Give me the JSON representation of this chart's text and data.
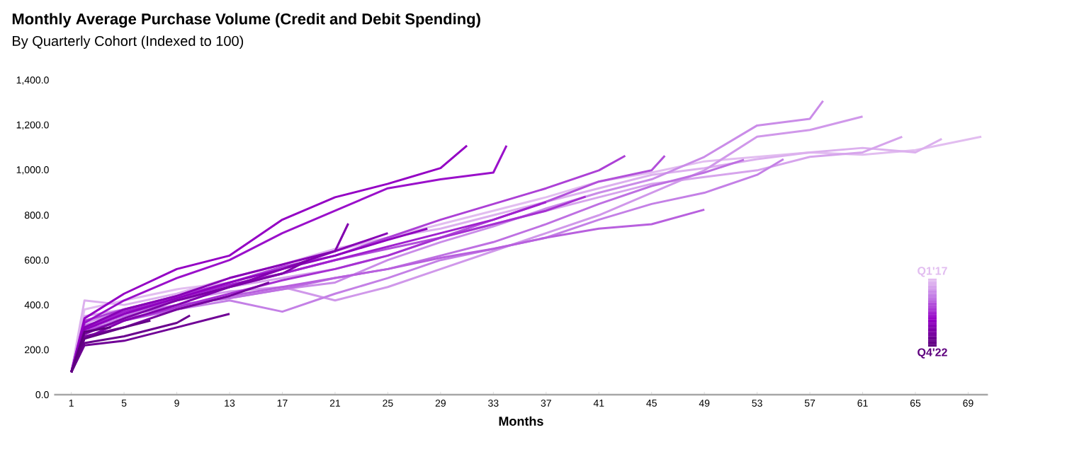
{
  "chart_data": {
    "type": "line",
    "title": "Monthly Average Purchase Volume (Credit and Debit Spending)",
    "subtitle": "By Quarterly Cohort (Indexed to 100)",
    "xlabel": "Months",
    "xlim": [
      -0.3,
      70.5
    ],
    "xticks": [
      1,
      5,
      9,
      13,
      17,
      21,
      25,
      29,
      33,
      37,
      41,
      45,
      49,
      53,
      57,
      61,
      65,
      69
    ],
    "ylim": [
      0,
      1400
    ],
    "yticks": [
      {
        "value": 0,
        "label": "0.0"
      },
      {
        "value": 200,
        "label": "200.0"
      },
      {
        "value": 400,
        "label": "400.0"
      },
      {
        "value": 600,
        "label": "600.0"
      },
      {
        "value": 800,
        "label": "800.0"
      },
      {
        "value": 1000,
        "label": "1,000.0"
      },
      {
        "value": 1200,
        "label": "1,200.0"
      },
      {
        "value": 1400,
        "label": "1,400.0"
      }
    ],
    "grid": false,
    "annotations": [
      "Q1'17",
      "Q4'22"
    ],
    "series": [
      {
        "color": "#e2bdf0",
        "x": [
          1,
          2,
          5,
          9,
          13,
          17,
          21,
          25,
          29,
          33,
          37,
          41,
          45,
          49,
          53,
          57,
          61,
          65,
          70
        ],
        "values": [
          100,
          380,
          420,
          470,
          500,
          560,
          640,
          700,
          760,
          820,
          880,
          950,
          990,
          1040,
          1060,
          1080,
          1070,
          1090,
          1150
        ]
      },
      {
        "color": "#dcb0ee",
        "x": [
          1,
          2,
          5,
          9,
          13,
          17,
          21,
          25,
          29,
          33,
          37,
          41,
          45,
          49,
          53,
          57,
          61,
          65,
          67
        ],
        "values": [
          100,
          420,
          400,
          450,
          520,
          580,
          650,
          700,
          740,
          800,
          860,
          920,
          980,
          1010,
          1050,
          1080,
          1100,
          1080,
          1140
        ]
      },
      {
        "color": "#d6a4ec",
        "x": [
          1,
          2,
          5,
          9,
          13,
          17,
          21,
          25,
          29,
          33,
          37,
          41,
          45,
          49,
          53,
          57,
          61,
          64
        ],
        "values": [
          100,
          350,
          380,
          430,
          480,
          520,
          560,
          620,
          700,
          760,
          820,
          880,
          940,
          970,
          1000,
          1060,
          1080,
          1150
        ]
      },
      {
        "color": "#d098ea",
        "x": [
          1,
          2,
          5,
          9,
          13,
          17,
          21,
          25,
          29,
          33,
          37,
          41,
          45,
          49,
          53,
          57,
          61
        ],
        "values": [
          100,
          320,
          370,
          420,
          460,
          480,
          420,
          480,
          560,
          640,
          720,
          800,
          900,
          1000,
          1150,
          1180,
          1240
        ]
      },
      {
        "color": "#ca8ce8",
        "x": [
          1,
          2,
          5,
          9,
          13,
          17,
          21,
          25,
          29,
          33,
          37,
          41,
          45,
          49,
          53,
          57,
          58
        ],
        "values": [
          100,
          330,
          360,
          400,
          430,
          470,
          500,
          600,
          680,
          750,
          830,
          900,
          960,
          1060,
          1200,
          1230,
          1310
        ]
      },
      {
        "color": "#c480e6",
        "x": [
          1,
          2,
          5,
          9,
          13,
          17,
          21,
          25,
          29,
          33,
          37,
          41,
          45,
          49,
          53,
          55
        ],
        "values": [
          100,
          300,
          340,
          380,
          420,
          370,
          450,
          520,
          600,
          650,
          700,
          780,
          850,
          900,
          980,
          1050
        ]
      },
      {
        "color": "#be70e2",
        "x": [
          1,
          2,
          5,
          9,
          13,
          17,
          21,
          25,
          29,
          33,
          37,
          41,
          45,
          49,
          52
        ],
        "values": [
          100,
          310,
          350,
          400,
          430,
          470,
          520,
          560,
          620,
          680,
          760,
          850,
          930,
          990,
          1047
        ]
      },
      {
        "color": "#b860de",
        "x": [
          1,
          2,
          5,
          9,
          13,
          17,
          21,
          25,
          29,
          33,
          37,
          41,
          45,
          49
        ],
        "values": [
          100,
          290,
          330,
          380,
          440,
          480,
          520,
          560,
          610,
          650,
          700,
          740,
          760,
          825
        ]
      },
      {
        "color": "#b250da",
        "x": [
          1,
          2,
          5,
          9,
          13,
          17,
          21,
          25,
          29,
          33,
          37,
          41,
          45,
          46
        ],
        "values": [
          100,
          300,
          360,
          420,
          480,
          540,
          600,
          650,
          700,
          780,
          860,
          950,
          1000,
          1065
        ]
      },
      {
        "color": "#ac40d6",
        "x": [
          1,
          2,
          5,
          9,
          13,
          17,
          21,
          25,
          29,
          33,
          37,
          41,
          43
        ],
        "values": [
          100,
          330,
          380,
          440,
          500,
          570,
          620,
          700,
          780,
          850,
          920,
          1000,
          1065
        ]
      },
      {
        "color": "#a630d2",
        "x": [
          1,
          2,
          5,
          9,
          13,
          17,
          21,
          25,
          29,
          33,
          37,
          40
        ],
        "values": [
          100,
          280,
          330,
          390,
          450,
          510,
          560,
          620,
          700,
          760,
          820,
          883
        ]
      },
      {
        "color": "#a020ce",
        "x": [
          1,
          2,
          5,
          9,
          13,
          17,
          21,
          25,
          29,
          33,
          37
        ],
        "values": [
          100,
          300,
          370,
          430,
          490,
          540,
          600,
          660,
          720,
          780,
          858
        ]
      },
      {
        "color": "#9a10ca",
        "x": [
          1,
          2,
          5,
          9,
          13,
          17,
          21,
          25,
          29,
          33,
          34
        ],
        "values": [
          100,
          320,
          420,
          520,
          600,
          720,
          820,
          920,
          960,
          990,
          1110
        ]
      },
      {
        "color": "#9400c4",
        "x": [
          1,
          2,
          5,
          9,
          13,
          17,
          21,
          25,
          29,
          31
        ],
        "values": [
          100,
          340,
          450,
          560,
          620,
          780,
          880,
          940,
          1010,
          1110
        ]
      },
      {
        "color": "#8e00be",
        "x": [
          1,
          2,
          5,
          9,
          13,
          17,
          21,
          25,
          28
        ],
        "values": [
          100,
          290,
          360,
          430,
          500,
          560,
          620,
          690,
          740
        ]
      },
      {
        "color": "#8800b6",
        "x": [
          1,
          2,
          5,
          9,
          13,
          17,
          21,
          25
        ],
        "values": [
          100,
          300,
          380,
          440,
          520,
          580,
          640,
          720
        ]
      },
      {
        "color": "#8200ae",
        "x": [
          1,
          2,
          5,
          9,
          13,
          17,
          21,
          22
        ],
        "values": [
          100,
          250,
          330,
          400,
          480,
          560,
          640,
          763
        ]
      },
      {
        "color": "#7c00a6",
        "x": [
          1,
          2,
          5,
          9,
          13,
          17,
          19
        ],
        "values": [
          100,
          270,
          340,
          420,
          480,
          540,
          600
        ]
      },
      {
        "color": "#76009e",
        "x": [
          1,
          2,
          5,
          9,
          13,
          16
        ],
        "values": [
          100,
          260,
          300,
          380,
          440,
          500
        ]
      },
      {
        "color": "#700096",
        "x": [
          1,
          2,
          5,
          9,
          13
        ],
        "values": [
          100,
          220,
          240,
          300,
          360
        ]
      },
      {
        "color": "#6a008e",
        "x": [
          1,
          2,
          5,
          9,
          10
        ],
        "values": [
          100,
          230,
          260,
          320,
          353
        ]
      },
      {
        "color": "#640086",
        "x": [
          1,
          2,
          5,
          7
        ],
        "values": [
          100,
          250,
          300,
          330
        ]
      },
      {
        "color": "#5e007e",
        "x": [
          1,
          2,
          4
        ],
        "values": [
          100,
          280,
          300
        ]
      }
    ]
  }
}
